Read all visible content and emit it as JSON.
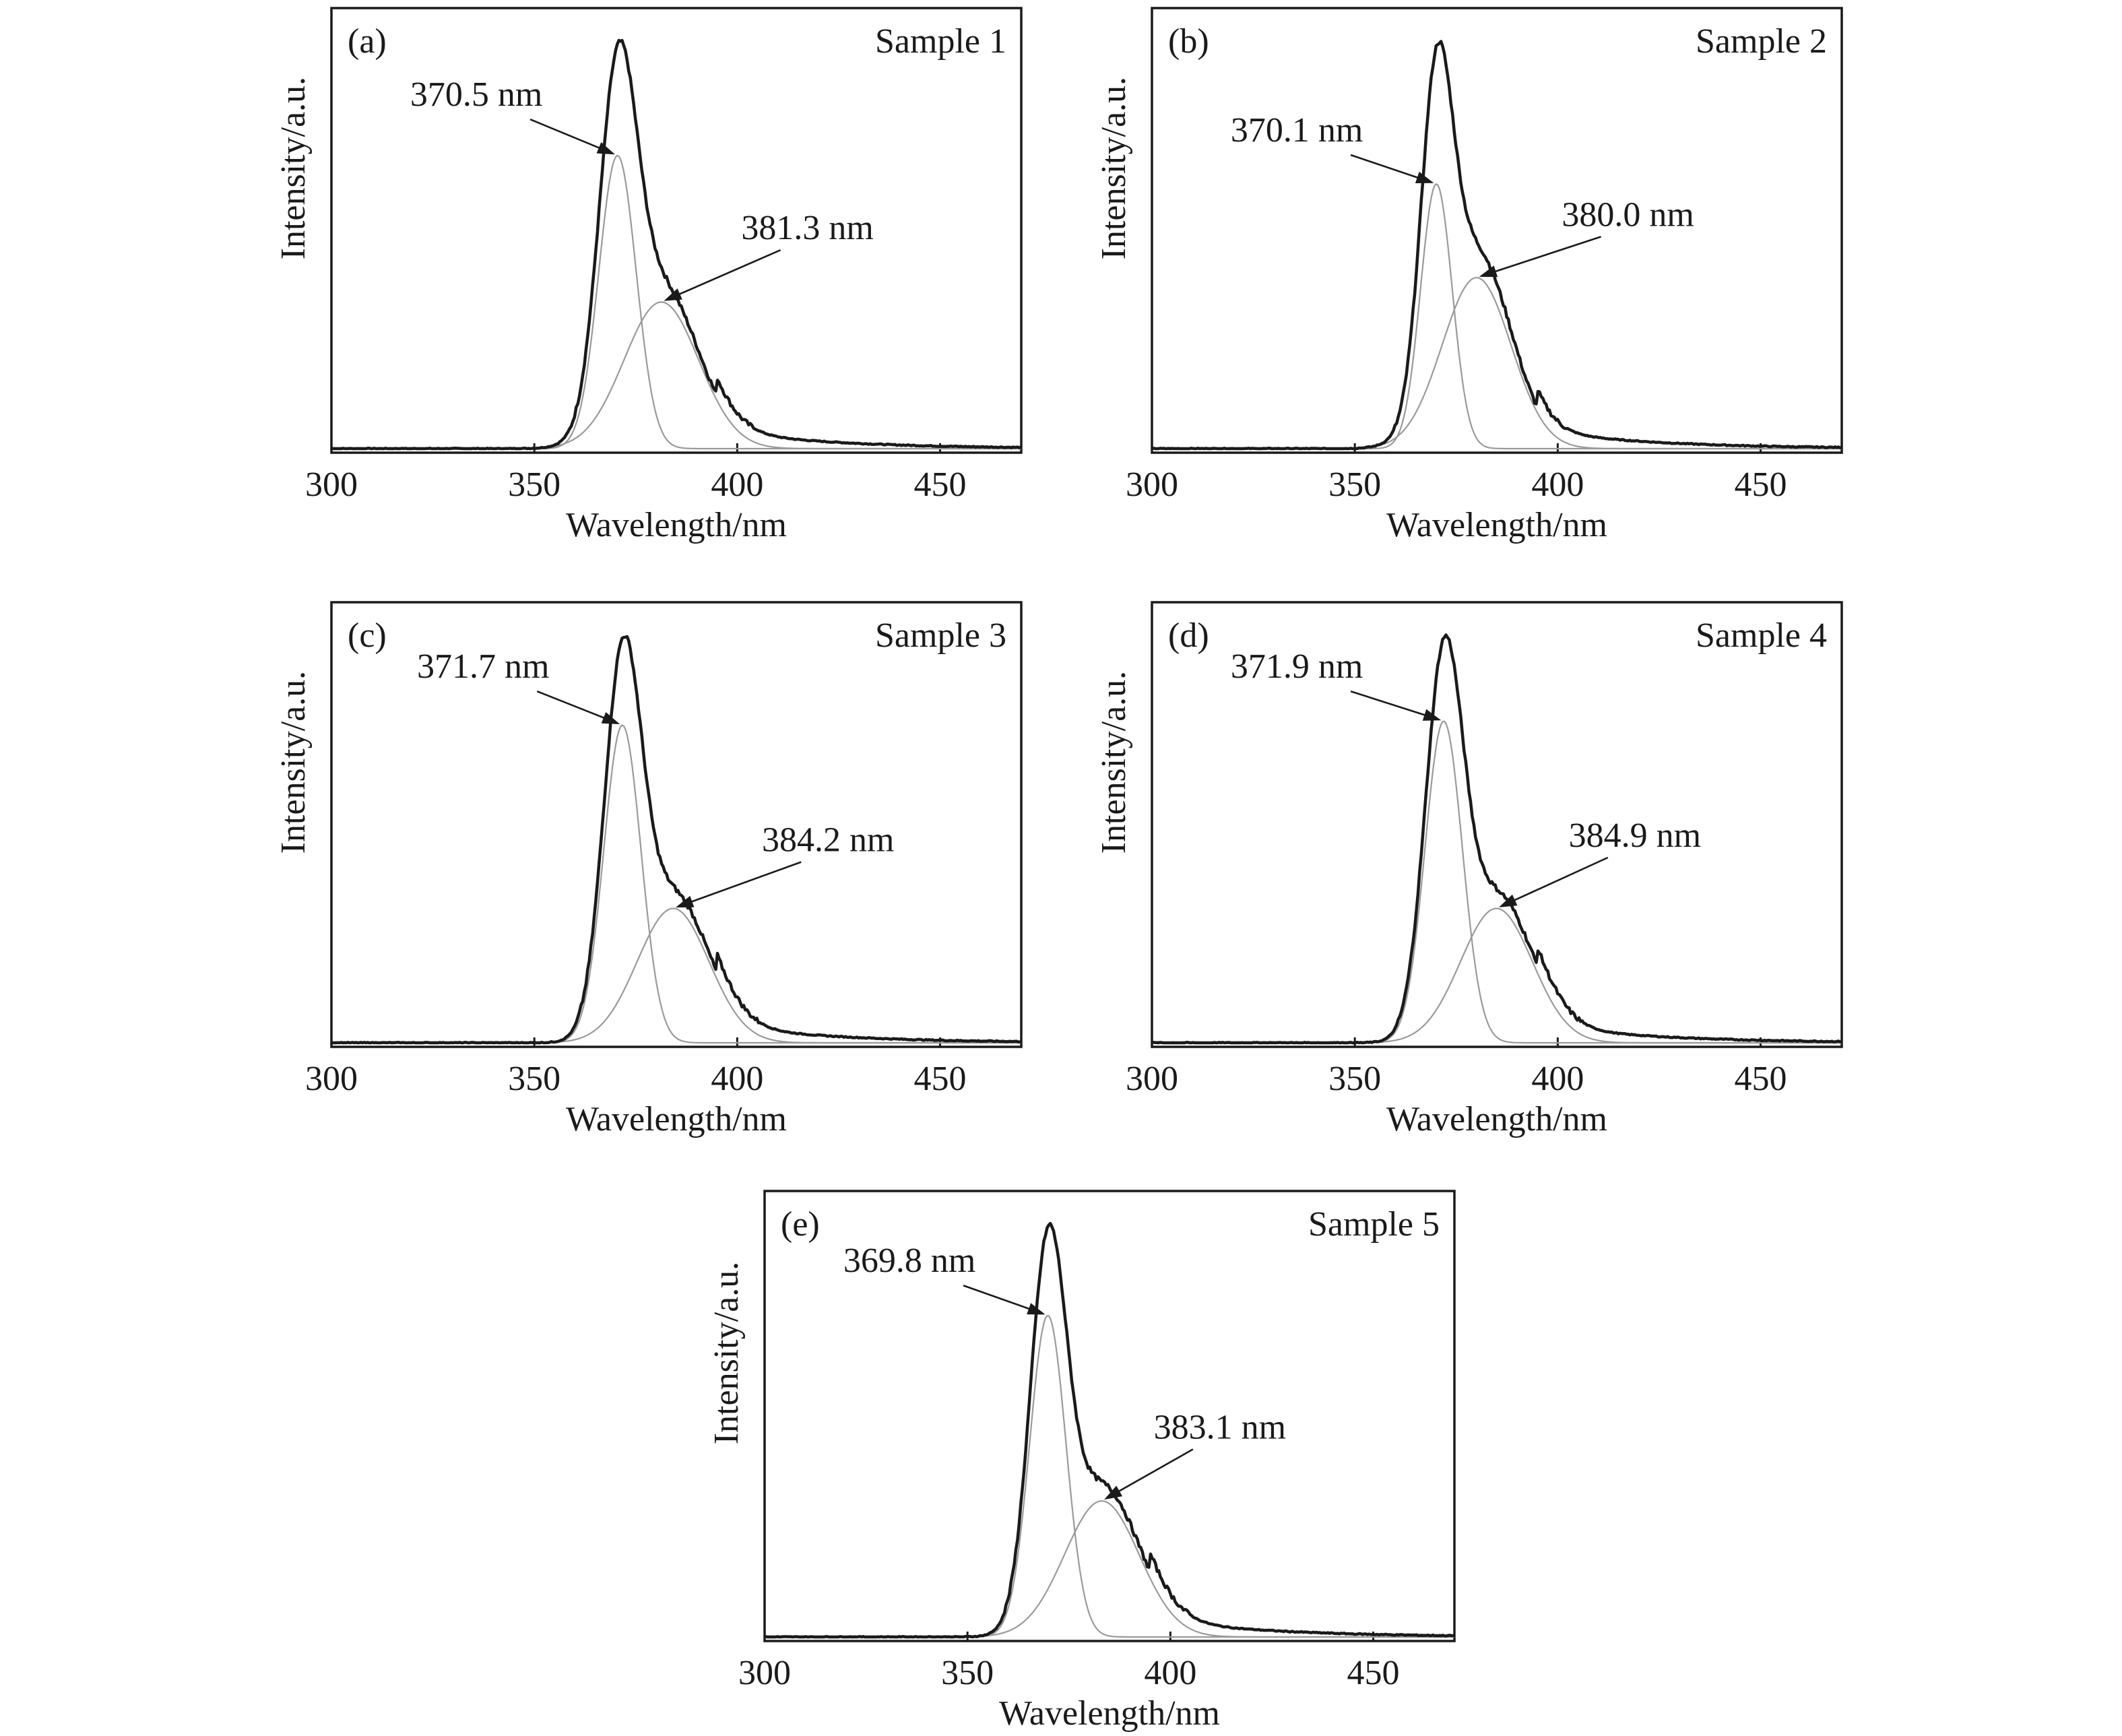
{
  "chart_data": [
    {
      "type": "line",
      "panel_label": "(a)",
      "sample_label": "Sample 1",
      "xlabel": "Wavelength/nm",
      "ylabel": "Intensity/a.u.",
      "xlim": [
        300,
        470
      ],
      "xticks": [
        300,
        350,
        400,
        450
      ],
      "ylim": [
        0,
        1
      ],
      "y_tick_labels": "none",
      "grid": false,
      "measured_peak": {
        "x": 371.5,
        "y": 1.0
      },
      "series": [
        {
          "kind": "measured",
          "peaks": [
            {
              "center": 370.5,
              "amplitude": 0.72,
              "width": 6.5
            },
            {
              "center": 381.3,
              "amplitude": 0.36,
              "width": 13.0
            }
          ]
        },
        {
          "kind": "component",
          "center": 370.5,
          "amplitude": 0.72,
          "width": 6.5
        },
        {
          "kind": "component",
          "center": 381.3,
          "amplitude": 0.36,
          "width": 13.0
        }
      ],
      "annotations": [
        {
          "text": "370.5 nm",
          "points_to": [
            370.5,
            0.72
          ]
        },
        {
          "text": "381.3 nm",
          "points_to": [
            381.3,
            0.36
          ]
        }
      ]
    },
    {
      "type": "line",
      "panel_label": "(b)",
      "sample_label": "Sample 2",
      "xlabel": "Wavelength/nm",
      "ylabel": "Intensity/a.u.",
      "xlim": [
        300,
        470
      ],
      "xticks": [
        300,
        350,
        400,
        450
      ],
      "ylim": [
        0,
        1
      ],
      "y_tick_labels": "none",
      "grid": false,
      "measured_peak": {
        "x": 371.5,
        "y": 1.0
      },
      "series": [
        {
          "kind": "measured",
          "peaks": [
            {
              "center": 370.1,
              "amplitude": 0.65,
              "width": 5.5
            },
            {
              "center": 380.0,
              "amplitude": 0.42,
              "width": 12.0
            }
          ]
        },
        {
          "kind": "component",
          "center": 370.1,
          "amplitude": 0.65,
          "width": 5.5
        },
        {
          "kind": "component",
          "center": 380.0,
          "amplitude": 0.42,
          "width": 12.0
        }
      ],
      "annotations": [
        {
          "text": "370.1 nm",
          "points_to": [
            370.1,
            0.65
          ]
        },
        {
          "text": "380.0 nm",
          "points_to": [
            380.0,
            0.42
          ]
        }
      ]
    },
    {
      "type": "line",
      "panel_label": "(c)",
      "sample_label": "Sample 3",
      "xlabel": "Wavelength/nm",
      "ylabel": "Intensity/a.u.",
      "xlim": [
        300,
        470
      ],
      "xticks": [
        300,
        350,
        400,
        450
      ],
      "ylim": [
        0,
        1
      ],
      "y_tick_labels": "none",
      "grid": false,
      "measured_peak": {
        "x": 372.0,
        "y": 1.0
      },
      "series": [
        {
          "kind": "measured",
          "peaks": [
            {
              "center": 371.7,
              "amplitude": 0.78,
              "width": 6.5
            },
            {
              "center": 384.2,
              "amplitude": 0.33,
              "width": 12.5
            }
          ]
        },
        {
          "kind": "component",
          "center": 371.7,
          "amplitude": 0.78,
          "width": 6.5
        },
        {
          "kind": "component",
          "center": 384.2,
          "amplitude": 0.33,
          "width": 12.5
        }
      ],
      "annotations": [
        {
          "text": "371.7 nm",
          "points_to": [
            371.7,
            0.78
          ]
        },
        {
          "text": "384.2 nm",
          "points_to": [
            384.2,
            0.33
          ]
        }
      ]
    },
    {
      "type": "line",
      "panel_label": "(d)",
      "sample_label": "Sample 4",
      "xlabel": "Wavelength/nm",
      "ylabel": "Intensity/a.u.",
      "xlim": [
        300,
        470
      ],
      "xticks": [
        300,
        350,
        400,
        450
      ],
      "ylim": [
        0,
        1
      ],
      "y_tick_labels": "none",
      "grid": false,
      "measured_peak": {
        "x": 372.0,
        "y": 1.0
      },
      "series": [
        {
          "kind": "measured",
          "peaks": [
            {
              "center": 371.9,
              "amplitude": 0.79,
              "width": 6.5
            },
            {
              "center": 384.9,
              "amplitude": 0.33,
              "width": 12.5
            }
          ]
        },
        {
          "kind": "component",
          "center": 371.9,
          "amplitude": 0.79,
          "width": 6.5
        },
        {
          "kind": "component",
          "center": 384.9,
          "amplitude": 0.33,
          "width": 12.5
        }
      ],
      "annotations": [
        {
          "text": "371.9 nm",
          "points_to": [
            371.9,
            0.79
          ]
        },
        {
          "text": "384.9 nm",
          "points_to": [
            384.9,
            0.33
          ]
        }
      ]
    },
    {
      "type": "line",
      "panel_label": "(e)",
      "sample_label": "Sample 5",
      "xlabel": "Wavelength/nm",
      "ylabel": "Intensity/a.u.",
      "xlim": [
        300,
        470
      ],
      "xticks": [
        300,
        350,
        400,
        450
      ],
      "ylim": [
        0,
        1
      ],
      "y_tick_labels": "none",
      "grid": false,
      "measured_peak": {
        "x": 370.5,
        "y": 1.0
      },
      "series": [
        {
          "kind": "measured",
          "peaks": [
            {
              "center": 369.8,
              "amplitude": 0.78,
              "width": 6.3
            },
            {
              "center": 383.1,
              "amplitude": 0.33,
              "width": 13.0
            }
          ]
        },
        {
          "kind": "component",
          "center": 369.8,
          "amplitude": 0.78,
          "width": 6.3
        },
        {
          "kind": "component",
          "center": 383.1,
          "amplitude": 0.33,
          "width": 13.0
        }
      ],
      "annotations": [
        {
          "text": "369.8 nm",
          "points_to": [
            369.8,
            0.78
          ]
        },
        {
          "text": "383.1 nm",
          "points_to": [
            383.1,
            0.33
          ]
        }
      ]
    }
  ]
}
